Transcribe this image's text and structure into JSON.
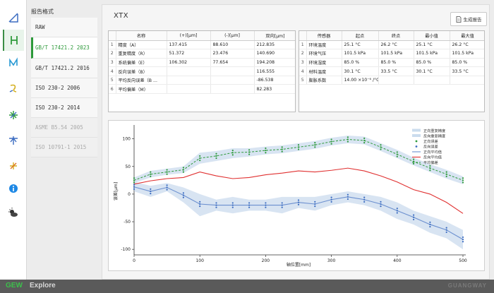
{
  "format_panel": {
    "title": "报告格式",
    "items": [
      {
        "label": "RAW",
        "state": "normal"
      },
      {
        "label": "GB/T 17421.2 2023",
        "state": "active"
      },
      {
        "label": "GB/T 17421.2 2016",
        "state": "normal"
      },
      {
        "label": "ISO 230-2 2006",
        "state": "normal"
      },
      {
        "label": "ISO 230-2 2014",
        "state": "normal"
      },
      {
        "label": "ASME B5.54 2005",
        "state": "disabled"
      },
      {
        "label": "ISO 10791-1 2015",
        "state": "disabled"
      }
    ]
  },
  "rail": {
    "icons": [
      "ruler-icon",
      "straightness-icon",
      "flatness-icon",
      "angle-icon",
      "rotary-icon",
      "squareness-icon",
      "dynamic-icon",
      "info-icon",
      "weather-icon"
    ]
  },
  "header": {
    "title": "XTX",
    "report_button": "生成报告"
  },
  "results_table": {
    "columns": [
      "",
      "名称",
      "(+)[μm]",
      "(-)[μm]",
      "双向[μm]"
    ],
    "rows": [
      [
        "1",
        "精度（A）",
        "137.415",
        "88.610",
        "212.835"
      ],
      [
        "2",
        "重复精度（R）",
        "51.372",
        "23.476",
        "140.690"
      ],
      [
        "3",
        "系统偏差（E）",
        "106.302",
        "77.654",
        "194.208"
      ],
      [
        "4",
        "反向误差（B）",
        "",
        "",
        "116.555"
      ],
      [
        "5",
        "平均反向误差（B ...",
        "",
        "",
        "-86.538"
      ],
      [
        "6",
        "平均偏差（M）",
        "",
        "",
        "82.283"
      ]
    ]
  },
  "sensor_table": {
    "columns": [
      "",
      "传感器",
      "起点",
      "终点",
      "最小值",
      "最大值"
    ],
    "rows": [
      [
        "1",
        "环境温度",
        "25.1 °C",
        "26.2 °C",
        "25.1 °C",
        "26.2 °C"
      ],
      [
        "2",
        "环境气压",
        "101.5 kPa",
        "101.5 kPa",
        "101.5 kPa",
        "101.5 kPa"
      ],
      [
        "3",
        "环境湿度",
        "85.0 %",
        "85.0 %",
        "85.0 %",
        "85.0 %"
      ],
      [
        "4",
        "材料温度",
        "30.1 °C",
        "33.5 °C",
        "30.1 °C",
        "33.5 °C"
      ],
      [
        "5",
        "膨胀系数",
        "14.00 ×10⁻⁶ /°C",
        "",
        "",
        ""
      ]
    ]
  },
  "chart_data": {
    "type": "line",
    "xlabel": "轴位置[mm]",
    "ylabel": "误差[μm]",
    "xlim": [
      0,
      500
    ],
    "ylim": [
      -110,
      120
    ],
    "xticks": [
      0,
      100,
      200,
      300,
      400,
      500
    ],
    "yticks": [
      -100,
      -50,
      0,
      50,
      100
    ],
    "grid": false,
    "legend_position": "top-right",
    "x": [
      0,
      25,
      50,
      75,
      100,
      125,
      150,
      175,
      200,
      225,
      250,
      275,
      300,
      325,
      350,
      375,
      400,
      425,
      450,
      475,
      500
    ],
    "series": [
      {
        "name": "正向重复精度",
        "kind": "band",
        "color": "#a8c4e2",
        "low": [
          20,
          30,
          35,
          38,
          55,
          60,
          65,
          68,
          72,
          74,
          78,
          82,
          88,
          92,
          90,
          78,
          65,
          52,
          40,
          28,
          18
        ],
        "high": [
          30,
          42,
          46,
          50,
          75,
          78,
          83,
          83,
          86,
          88,
          92,
          96,
          102,
          106,
          104,
          92,
          80,
          66,
          54,
          44,
          32
        ]
      },
      {
        "name": "反向重复精度",
        "kind": "band",
        "color": "#a8c4e2",
        "low": [
          5,
          -5,
          5,
          -15,
          -40,
          -30,
          -35,
          -30,
          -30,
          -35,
          -25,
          -30,
          -20,
          -15,
          -20,
          -30,
          -45,
          -55,
          -70,
          -80,
          -100
        ],
        "high": [
          22,
          15,
          20,
          12,
          0,
          -10,
          -5,
          -10,
          -10,
          -5,
          -5,
          -5,
          0,
          5,
          0,
          -5,
          -15,
          -30,
          -40,
          -50,
          -65
        ]
      },
      {
        "name": "正向误差",
        "kind": "points",
        "color": "#2d9a3a",
        "values": [
          25,
          36,
          40,
          44,
          65,
          69,
          75,
          76,
          79,
          81,
          85,
          89,
          95,
          99,
          97,
          85,
          72,
          59,
          47,
          36,
          25
        ]
      },
      {
        "name": "反向误差",
        "kind": "points",
        "color": "#3b6cc1",
        "values": [
          13,
          5,
          12,
          -2,
          -18,
          -20,
          -20,
          -20,
          -20,
          -20,
          -15,
          -18,
          -10,
          -5,
          -10,
          -18,
          -30,
          -42,
          -55,
          -65,
          -82
        ]
      },
      {
        "name": "正向平均值",
        "kind": "line",
        "color": "#6b8fcf",
        "values": [
          13,
          5,
          12,
          -2,
          -18,
          -20,
          -20,
          -20,
          -20,
          -20,
          -15,
          -18,
          -10,
          -5,
          -10,
          -18,
          -30,
          -42,
          -55,
          -65,
          -82
        ]
      },
      {
        "name": "反向平均值",
        "kind": "line",
        "color": "#e03030",
        "values": [
          18,
          24,
          28,
          30,
          40,
          33,
          28,
          30,
          35,
          38,
          42,
          40,
          43,
          47,
          42,
          33,
          22,
          8,
          0,
          -15,
          -35
        ]
      },
      {
        "name": "平均偏差",
        "kind": "dashed",
        "color": "#2d9a3a",
        "values": [
          25,
          36,
          40,
          44,
          65,
          69,
          75,
          76,
          79,
          81,
          85,
          89,
          95,
          99,
          97,
          85,
          72,
          59,
          47,
          36,
          25
        ]
      }
    ]
  },
  "footer": {
    "brand_green": "GEW",
    "brand_text": "Explore",
    "company": "GUANGWAY"
  },
  "colors": {
    "accent": "#2d9a3a",
    "footer_bg": "#5a5a5a"
  }
}
